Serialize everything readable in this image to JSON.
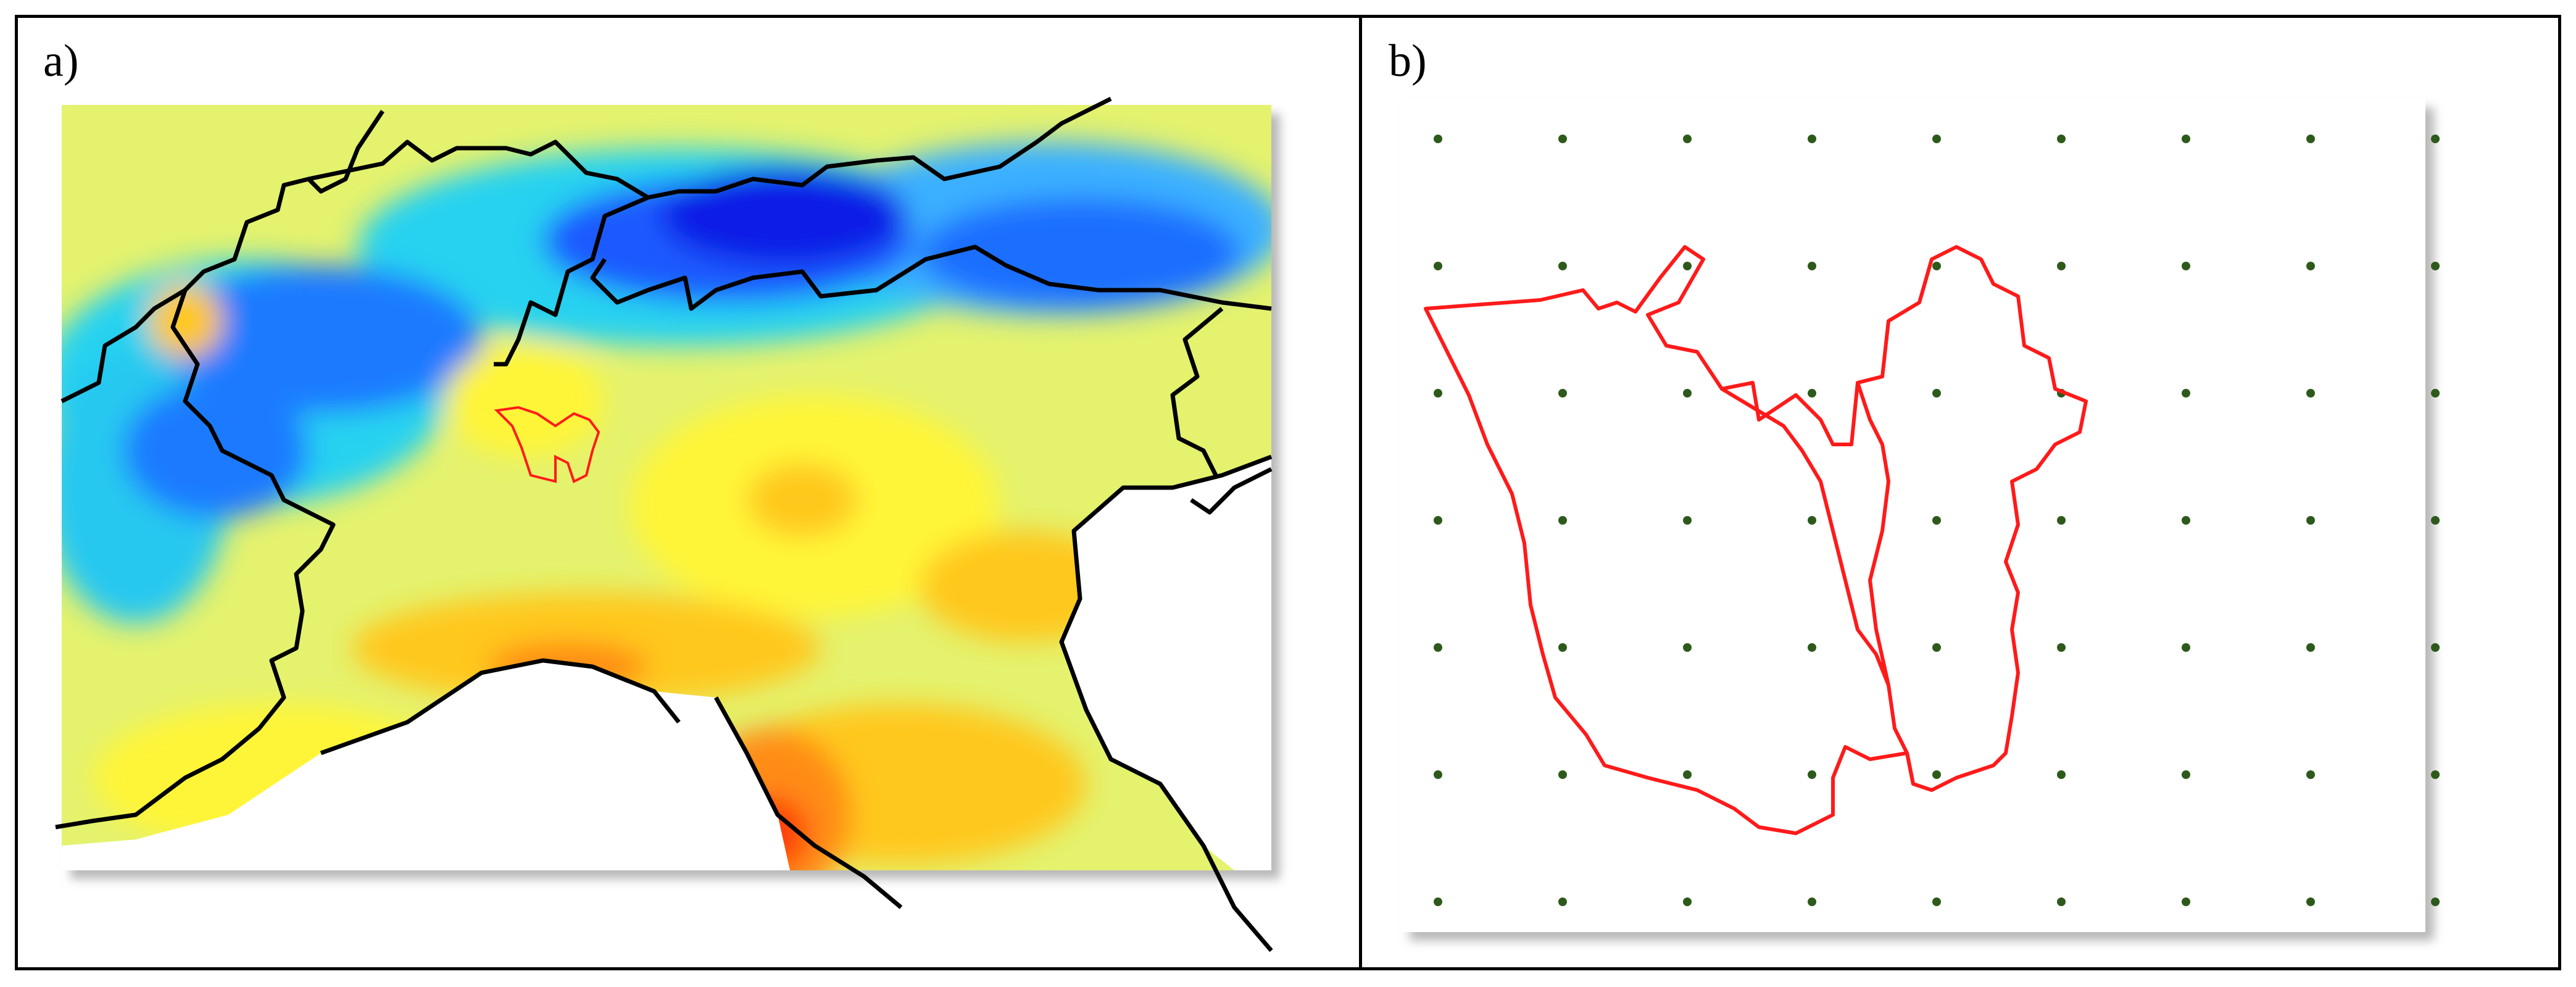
{
  "panels": [
    {
      "id": "a",
      "label": "a)"
    },
    {
      "id": "b",
      "label": "b)"
    }
  ],
  "colors": {
    "frame": "#000000",
    "basin_outline": "#ff1a1a",
    "border_line": "#000000",
    "grid_point": "#2d5a1b",
    "colormap": [
      "#0a1ee6",
      "#1e6eff",
      "#28d2f0",
      "#8cf0b4",
      "#d8f56e",
      "#fff538",
      "#ffc81e",
      "#ff8c14",
      "#ff3c0a",
      "#e60000"
    ]
  },
  "icons": {
    "grid_point": "dot-marker"
  }
}
